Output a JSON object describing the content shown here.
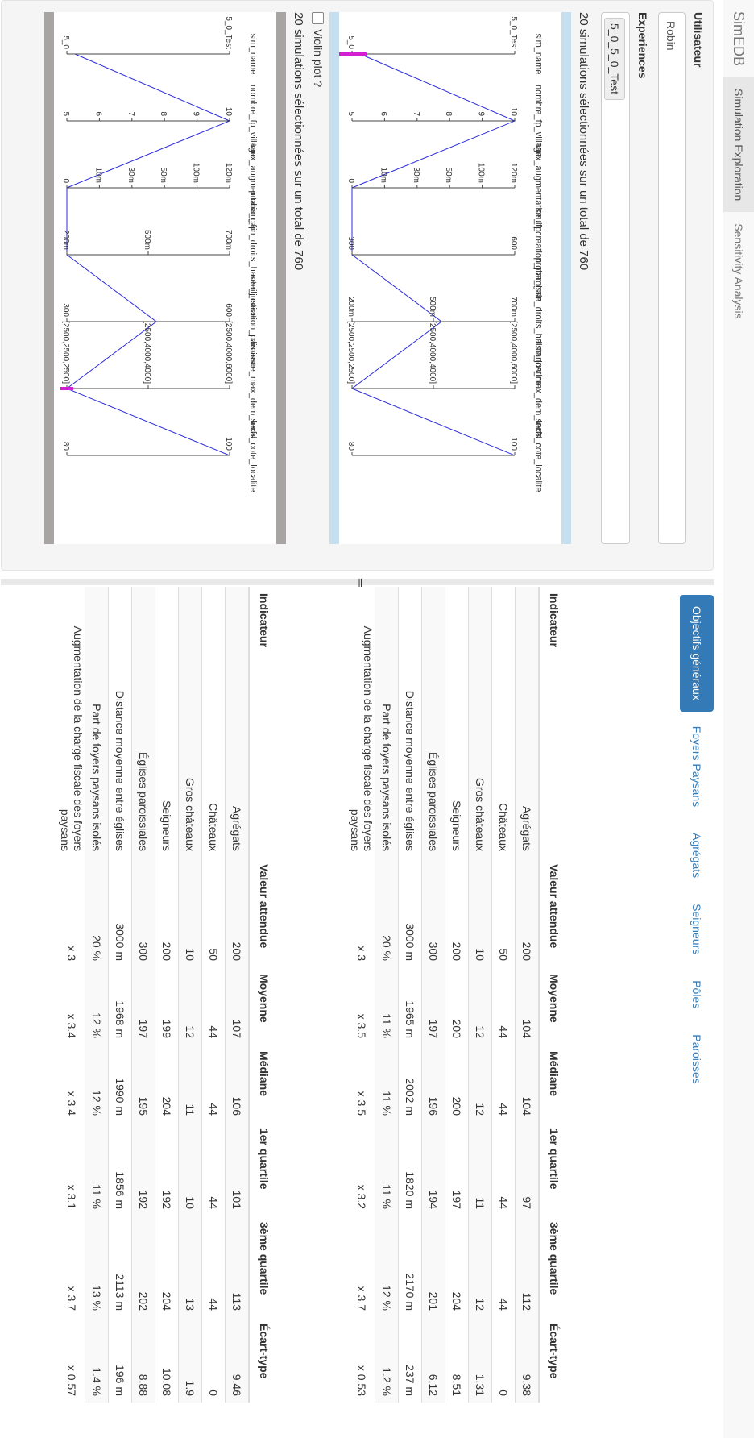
{
  "navbar": {
    "brand": "SimEDB",
    "tabs": [
      "Simulation Exploration",
      "Sensitivity Analysis"
    ]
  },
  "sidebar": {
    "user_label": "Utilisateur",
    "user_value": "Robin",
    "experiences_label": "Experiences",
    "experience_chip": "5_0_5_0_Test",
    "selection_text": "20 simulations sélectionnées sur un total de 760",
    "violin_label": "Violin plot ?"
  },
  "parallel_plots": [
    {
      "top_color": "#c6dfee",
      "axes": [
        {
          "name": "sim_name",
          "ticks": [
            "5_0_Test",
            "5_0"
          ]
        },
        {
          "name": "nombre_fp_village",
          "ticks": [
            "10",
            "9",
            "8",
            "7",
            "6",
            "5"
          ]
        },
        {
          "name": "taux_augmentation_fp",
          "ticks": [
            "120m",
            "100m",
            "50m",
            "30m",
            "10m",
            "0"
          ]
        },
        {
          "name": "seuil_creation_paroisse",
          "ticks": [
            "600",
            "300"
          ]
        },
        {
          "name": "proba_gain_droits_haute_justice",
          "ticks": [
            "700m",
            "500m",
            "200m"
          ]
        },
        {
          "name": "distance_max_dem_local",
          "ticks": [
            "[2500,4000,6000]",
            "[2500,4000,4000]",
            "[2500,2500,2500]"
          ]
        },
        {
          "name": "serfs_cote_localite",
          "ticks": [
            "100",
            "80"
          ]
        }
      ]
    },
    {
      "top_color": "#a8a4a4",
      "axes": [
        {
          "name": "sim_name",
          "ticks": [
            "5_0_Test",
            "5_0"
          ]
        },
        {
          "name": "nombre_fp_village",
          "ticks": [
            "10",
            "9",
            "8",
            "7",
            "6",
            "5"
          ]
        },
        {
          "name": "taux_augmentation_fp",
          "ticks": [
            "120m",
            "100m",
            "50m",
            "30m",
            "10m",
            "0"
          ]
        },
        {
          "name": "proba_gain_droits_haute_justice",
          "ticks": [
            "700m",
            "500m",
            "200m"
          ]
        },
        {
          "name": "seuil_creation_paroisse",
          "ticks": [
            "600",
            "300"
          ]
        },
        {
          "name": "distance_max_dem_local",
          "ticks": [
            "[2500,4000,6000]",
            "[2500,4000,4000]",
            "[2500,2500,2500]"
          ]
        },
        {
          "name": "serfs_cote_localite",
          "ticks": [
            "100",
            "80"
          ]
        }
      ]
    }
  ],
  "result_tabs": [
    "Objectifs généraux",
    "Foyers Paysans",
    "Agrégats",
    "Seigneurs",
    "Pôles",
    "Paroisses"
  ],
  "tables": [
    {
      "headers": [
        "Indicateur",
        "Valeur attendue",
        "Moyenne",
        "Médiane",
        "1er quartile",
        "3ème quartile",
        "Écart-type"
      ],
      "rows": [
        [
          "Agrégats",
          "200",
          "104",
          "104",
          "97",
          "112",
          "9.38"
        ],
        [
          "Châteaux",
          "50",
          "44",
          "44",
          "44",
          "44",
          "0"
        ],
        [
          "Gros châteaux",
          "10",
          "12",
          "12",
          "11",
          "12",
          "1.31"
        ],
        [
          "Seigneurs",
          "200",
          "200",
          "200",
          "197",
          "204",
          "8.51"
        ],
        [
          "Églises paroissiales",
          "300",
          "197",
          "196",
          "194",
          "201",
          "6.12"
        ],
        [
          "Distance moyenne entre églises",
          "3000 m",
          "1965 m",
          "2002 m",
          "1820 m",
          "2170 m",
          "237 m"
        ],
        [
          "Part de foyers paysans isolés",
          "20 %",
          "11 %",
          "11 %",
          "11 %",
          "12 %",
          "1.2 %"
        ],
        [
          "Augmentation de la charge fiscale des foyers paysans",
          "x 3",
          "x 3.5",
          "x 3.5",
          "x 3.2",
          "x 3.7",
          "x 0.53"
        ]
      ]
    },
    {
      "headers": [
        "Indicateur",
        "Valeur attendue",
        "Moyenne",
        "Médiane",
        "1er quartile",
        "3ème quartile",
        "Écart-type"
      ],
      "rows": [
        [
          "Agrégats",
          "200",
          "107",
          "106",
          "101",
          "113",
          "9.46"
        ],
        [
          "Châteaux",
          "50",
          "44",
          "44",
          "44",
          "44",
          "0"
        ],
        [
          "Gros châteaux",
          "10",
          "12",
          "11",
          "10",
          "13",
          "1.9"
        ],
        [
          "Seigneurs",
          "200",
          "199",
          "204",
          "192",
          "204",
          "10.08"
        ],
        [
          "Églises paroissiales",
          "300",
          "197",
          "195",
          "192",
          "202",
          "8.88"
        ],
        [
          "Distance moyenne entre églises",
          "3000 m",
          "1968 m",
          "1990 m",
          "1856 m",
          "2113 m",
          "196 m"
        ],
        [
          "Part de foyers paysans isolés",
          "20 %",
          "12 %",
          "12 %",
          "11 %",
          "13 %",
          "1.4 %"
        ],
        [
          "Augmentation de la charge fiscale des foyers paysans",
          "x 3",
          "x 3.4",
          "x 3.4",
          "x 3.1",
          "x 3.7",
          "x 0.57"
        ]
      ]
    }
  ]
}
